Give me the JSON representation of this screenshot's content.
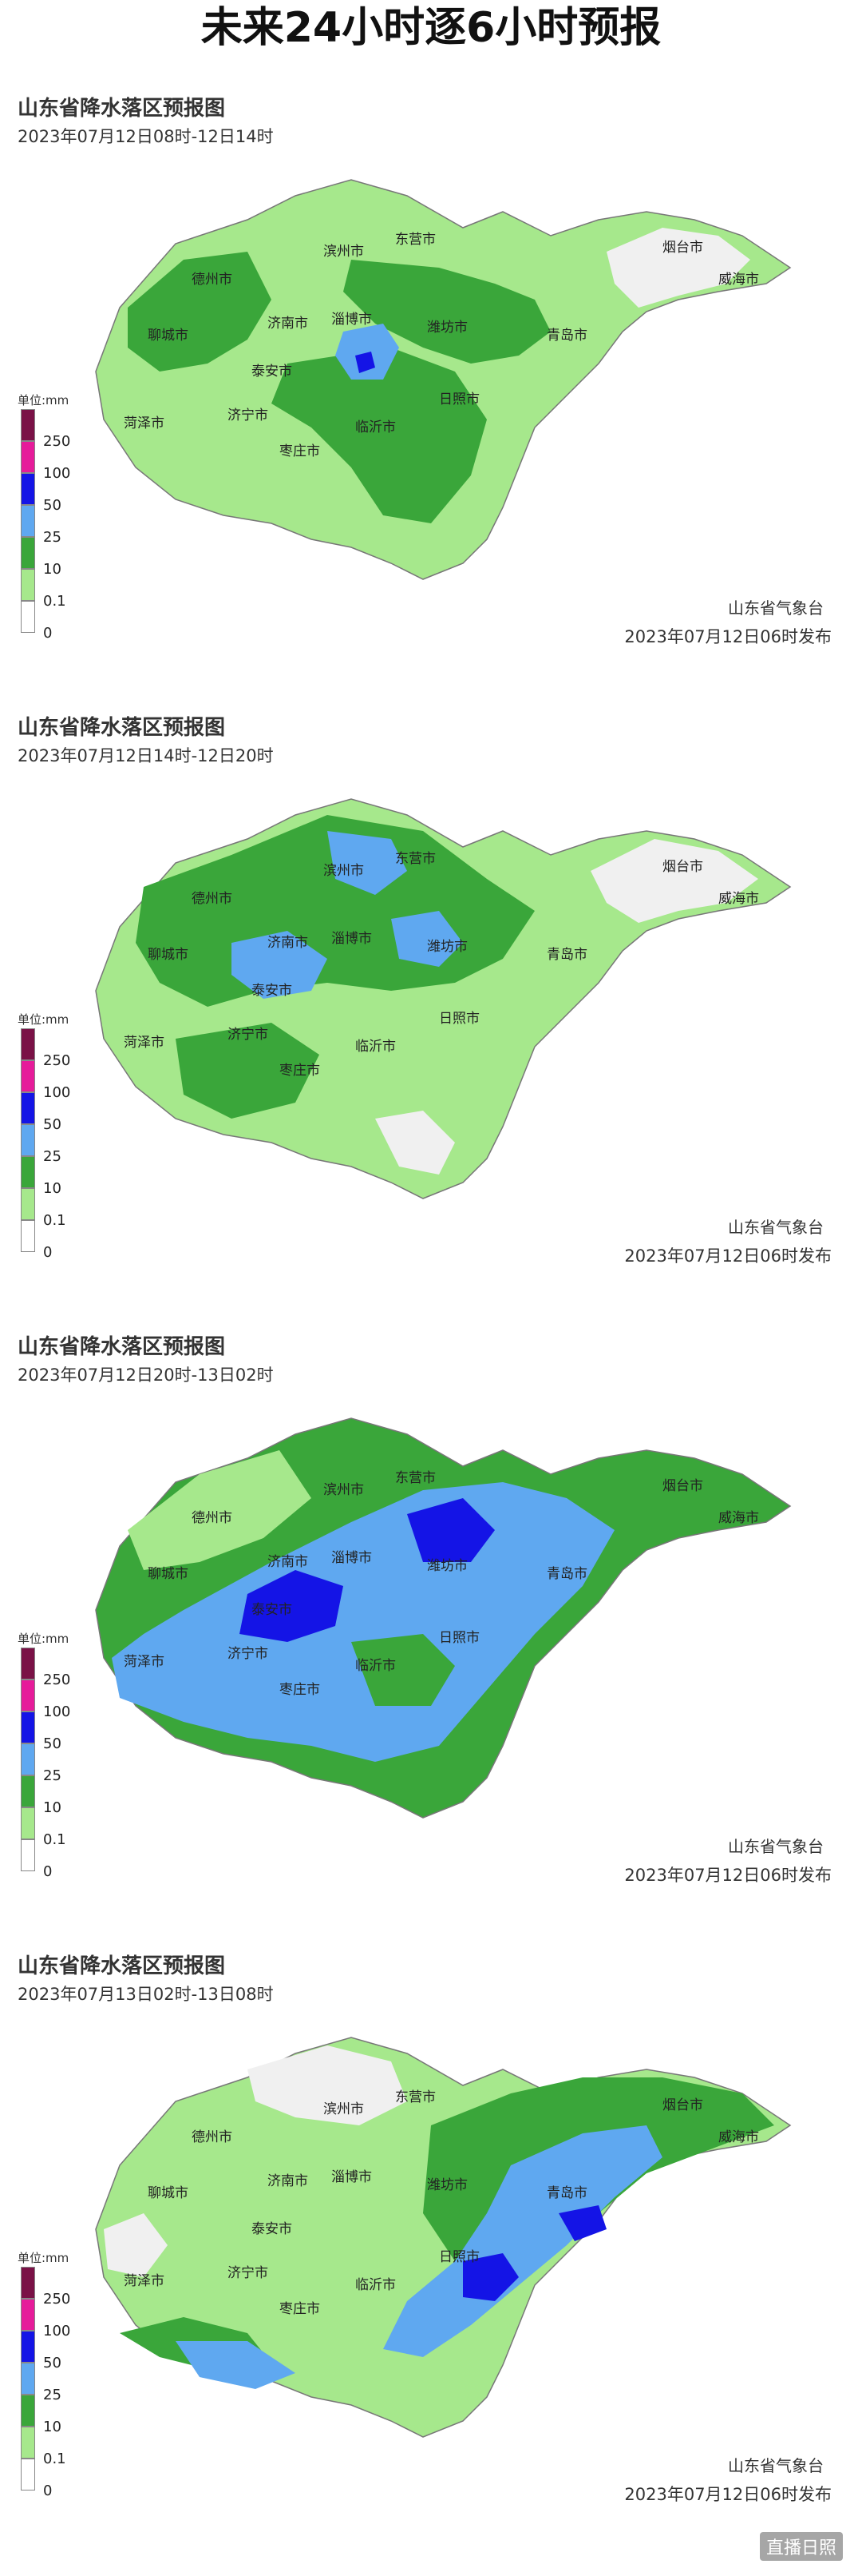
{
  "title": "未来24小时逐6小时预报",
  "legend": {
    "unit": "单位:mm",
    "levels": [
      {
        "label": "250",
        "color": "#7a1146"
      },
      {
        "label": "100",
        "color": "#e61b9a"
      },
      {
        "label": "50",
        "color": "#1414e6"
      },
      {
        "label": "25",
        "color": "#5fa8f0"
      },
      {
        "label": "10",
        "color": "#3aa63a"
      },
      {
        "label": "0.1",
        "color": "#a6e88c"
      },
      {
        "label": "0",
        "color": "#ffffff"
      }
    ]
  },
  "cities": [
    "德州市",
    "滨州市",
    "东营市",
    "烟台市",
    "威海市",
    "聊城市",
    "济南市",
    "淄博市",
    "潍坊市",
    "青岛市",
    "泰安市",
    "菏泽市",
    "济宁市",
    "临沂市",
    "日照市",
    "枣庄市"
  ],
  "panels": [
    {
      "title": "山东省降水落区预报图",
      "time": "2023年07月12日08时-12日14时",
      "issuer": "山东省气象台",
      "issue_time": "2023年07月12日06时发布"
    },
    {
      "title": "山东省降水落区预报图",
      "time": "2023年07月12日14时-12日20时",
      "issuer": "山东省气象台",
      "issue_time": "2023年07月12日06时发布"
    },
    {
      "title": "山东省降水落区预报图",
      "time": "2023年07月12日20时-13日02时",
      "issuer": "山东省气象台",
      "issue_time": "2023年07月12日06时发布"
    },
    {
      "title": "山东省降水落区预报图",
      "time": "2023年07月13日02时-13日08时",
      "issuer": "山东省气象台",
      "issue_time": "2023年07月12日06时发布"
    }
  ],
  "watermark": "直播日照"
}
